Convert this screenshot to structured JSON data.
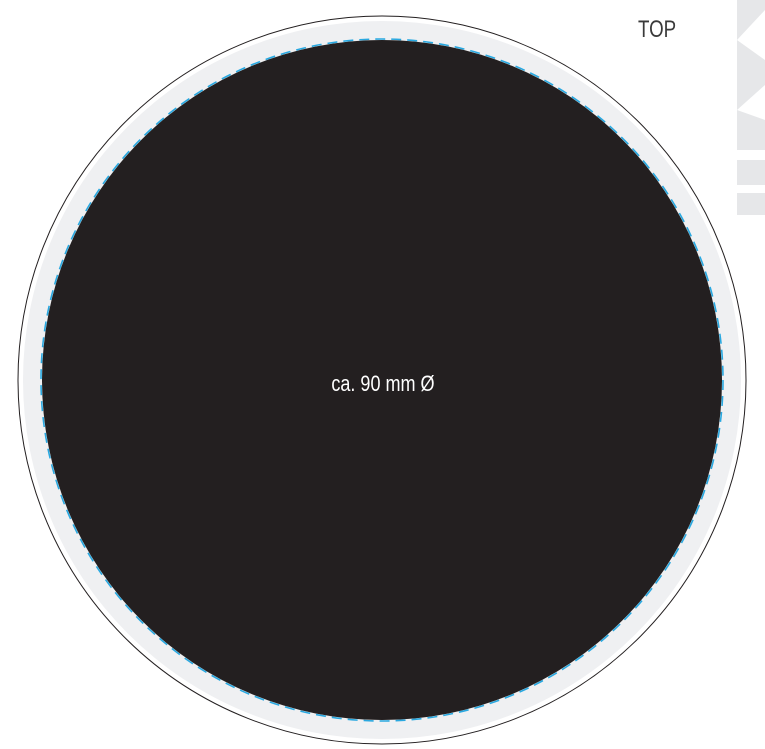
{
  "orientation_label": "TOP",
  "diameter_label": "ca. 90 mm Ø",
  "colors": {
    "print_area": "#231f20",
    "bleed_ring": "#eff0f2",
    "outer_edge": "#231f20",
    "cut_line": "#29a8e0",
    "corner_mark": "#e6e7e9"
  }
}
